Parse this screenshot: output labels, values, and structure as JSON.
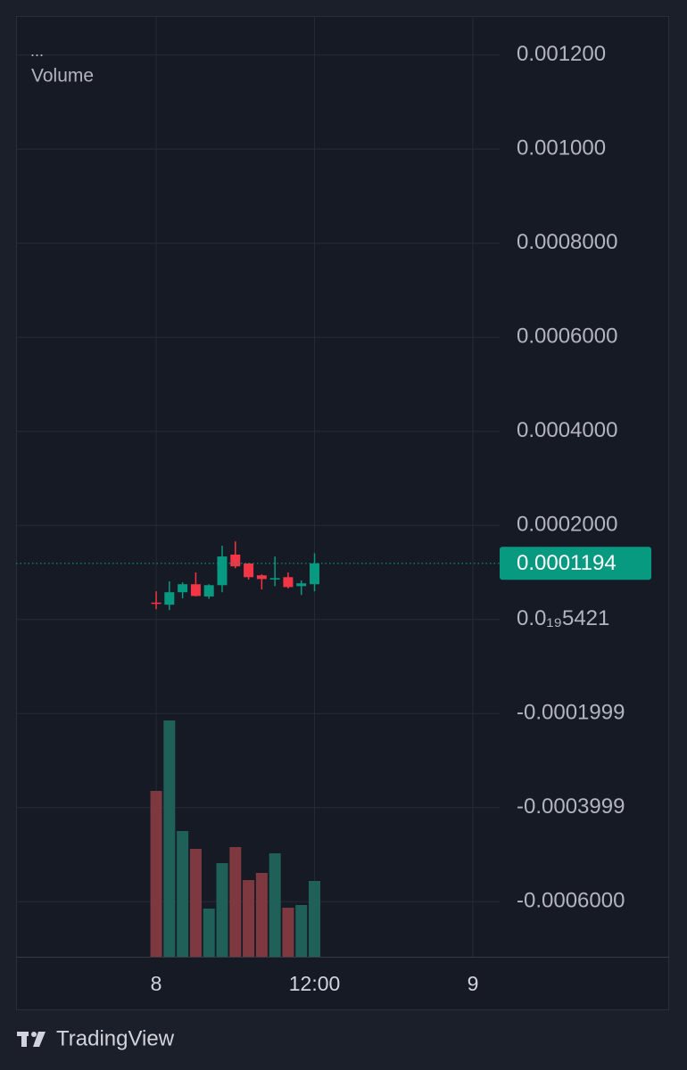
{
  "chart_data": {
    "type": "candlestick",
    "indicator_menu": "...",
    "volume_label": "Volume",
    "branding": "TradingView",
    "x": [
      0,
      1,
      2,
      3,
      4,
      5,
      6,
      7,
      8,
      9,
      10,
      11,
      12
    ],
    "open": [
      3.6e-05,
      3.15e-05,
      5.8e-05,
      7.5e-05,
      4.9e-05,
      7.3e-05,
      0.000138,
      0.000119,
      9.4e-05,
      8.5e-05,
      9e-05,
      7.1e-05,
      7.5e-05
    ],
    "high": [
      6e-05,
      8.1e-05,
      7.9e-05,
      0.0001,
      7.5e-05,
      0.000157,
      0.000166,
      0.00012,
      9.6e-05,
      0.000134,
      0.0001,
      8.3e-05,
      0.000141
    ],
    "low": [
      2.2e-05,
      2e-05,
      4.5e-05,
      4.9e-05,
      4.4e-05,
      5.8e-05,
      0.000109,
      8.5e-05,
      6.4e-05,
      7.1e-05,
      6.6e-05,
      5.2e-05,
      6e-05
    ],
    "close": [
      3.4e-05,
      5.8e-05,
      7.5e-05,
      5e-05,
      7.3e-05,
      0.000134,
      0.000113,
      9e-05,
      8.6e-05,
      8.8e-05,
      6.9e-05,
      7.7e-05,
      0.0001194
    ],
    "up_color": "#089981",
    "down_color": "#f23645",
    "volume": {
      "values": [
        186,
        265,
        141,
        121,
        54,
        105,
        123,
        86,
        94,
        116,
        55,
        58,
        85
      ],
      "up_color": "#1f6158",
      "down_color": "#7e3940",
      "ylim": [
        0,
        1055
      ]
    },
    "xlim": [
      -10.62,
      26.03
    ],
    "xticks": [
      {
        "value": 0,
        "label": "8"
      },
      {
        "value": 12,
        "label": "12:00"
      },
      {
        "value": 24,
        "label": "9"
      }
    ],
    "ylim": [
      -0.000717,
      0.001283
    ],
    "yticks": [
      {
        "value": 0.0012,
        "label": "0.001200"
      },
      {
        "value": 0.001,
        "label": "0.001000"
      },
      {
        "value": 0.0008,
        "label": "0.0008000"
      },
      {
        "value": 0.0006,
        "label": "0.0006000"
      },
      {
        "value": 0.0004,
        "label": "0.0004000"
      },
      {
        "value": 0.0002,
        "label": "0.0002000"
      },
      {
        "value": 5.421e-20,
        "label": "0.0₁₉5421"
      },
      -0.0001999,
      -0.0003999,
      {
        "value": -0.0006,
        "label": "-0.0006000"
      }
    ],
    "grid": true,
    "last_price_color": "#089981"
  }
}
